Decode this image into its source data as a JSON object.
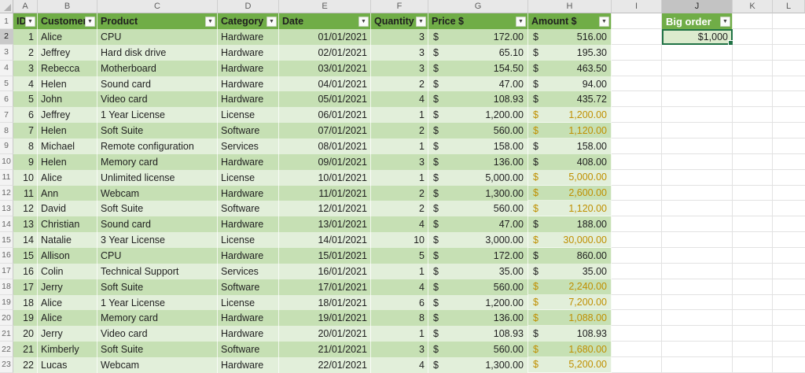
{
  "sheet": {
    "column_letters": [
      "A",
      "B",
      "C",
      "D",
      "E",
      "F",
      "G",
      "H",
      "I",
      "J",
      "K",
      "L"
    ],
    "first_row_number": 1,
    "last_row_number": 23
  },
  "selection": {
    "column": "J",
    "row": 2
  },
  "table": {
    "headers": [
      "ID",
      "Customer",
      "Product",
      "Category",
      "Date",
      "Quantity",
      "Price $",
      "Amount $"
    ],
    "rows": [
      {
        "id": "1",
        "customer": "Alice",
        "product": "CPU",
        "category": "Hardware",
        "date": "01/01/2021",
        "quantity": "3",
        "price": "172.00",
        "amount": "516.00",
        "big_order": false
      },
      {
        "id": "2",
        "customer": "Jeffrey",
        "product": "Hard disk drive",
        "category": "Hardware",
        "date": "02/01/2021",
        "quantity": "3",
        "price": "65.10",
        "amount": "195.30",
        "big_order": false
      },
      {
        "id": "3",
        "customer": "Rebecca",
        "product": "Motherboard",
        "category": "Hardware",
        "date": "03/01/2021",
        "quantity": "3",
        "price": "154.50",
        "amount": "463.50",
        "big_order": false
      },
      {
        "id": "4",
        "customer": "Helen",
        "product": "Sound card",
        "category": "Hardware",
        "date": "04/01/2021",
        "quantity": "2",
        "price": "47.00",
        "amount": "94.00",
        "big_order": false
      },
      {
        "id": "5",
        "customer": "John",
        "product": "Video card",
        "category": "Hardware",
        "date": "05/01/2021",
        "quantity": "4",
        "price": "108.93",
        "amount": "435.72",
        "big_order": false
      },
      {
        "id": "6",
        "customer": "Jeffrey",
        "product": "1 Year License",
        "category": "License",
        "date": "06/01/2021",
        "quantity": "1",
        "price": "1,200.00",
        "amount": "1,200.00",
        "big_order": true
      },
      {
        "id": "7",
        "customer": "Helen",
        "product": "Soft Suite",
        "category": "Software",
        "date": "07/01/2021",
        "quantity": "2",
        "price": "560.00",
        "amount": "1,120.00",
        "big_order": true
      },
      {
        "id": "8",
        "customer": "Michael",
        "product": "Remote configuration",
        "category": "Services",
        "date": "08/01/2021",
        "quantity": "1",
        "price": "158.00",
        "amount": "158.00",
        "big_order": false
      },
      {
        "id": "9",
        "customer": "Helen",
        "product": "Memory card",
        "category": "Hardware",
        "date": "09/01/2021",
        "quantity": "3",
        "price": "136.00",
        "amount": "408.00",
        "big_order": false
      },
      {
        "id": "10",
        "customer": "Alice",
        "product": "Unlimited license",
        "category": "License",
        "date": "10/01/2021",
        "quantity": "1",
        "price": "5,000.00",
        "amount": "5,000.00",
        "big_order": true
      },
      {
        "id": "11",
        "customer": "Ann",
        "product": "Webcam",
        "category": "Hardware",
        "date": "11/01/2021",
        "quantity": "2",
        "price": "1,300.00",
        "amount": "2,600.00",
        "big_order": true
      },
      {
        "id": "12",
        "customer": "David",
        "product": "Soft Suite",
        "category": "Software",
        "date": "12/01/2021",
        "quantity": "2",
        "price": "560.00",
        "amount": "1,120.00",
        "big_order": true
      },
      {
        "id": "13",
        "customer": "Christian",
        "product": "Sound card",
        "category": "Hardware",
        "date": "13/01/2021",
        "quantity": "4",
        "price": "47.00",
        "amount": "188.00",
        "big_order": false
      },
      {
        "id": "14",
        "customer": "Natalie",
        "product": "3 Year License",
        "category": "License",
        "date": "14/01/2021",
        "quantity": "10",
        "price": "3,000.00",
        "amount": "30,000.00",
        "big_order": true
      },
      {
        "id": "15",
        "customer": "Allison",
        "product": "CPU",
        "category": "Hardware",
        "date": "15/01/2021",
        "quantity": "5",
        "price": "172.00",
        "amount": "860.00",
        "big_order": false
      },
      {
        "id": "16",
        "customer": "Colin",
        "product": "Technical Support",
        "category": "Services",
        "date": "16/01/2021",
        "quantity": "1",
        "price": "35.00",
        "amount": "35.00",
        "big_order": false
      },
      {
        "id": "17",
        "customer": "Jerry",
        "product": "Soft Suite",
        "category": "Software",
        "date": "17/01/2021",
        "quantity": "4",
        "price": "560.00",
        "amount": "2,240.00",
        "big_order": true
      },
      {
        "id": "18",
        "customer": "Alice",
        "product": "1 Year License",
        "category": "License",
        "date": "18/01/2021",
        "quantity": "6",
        "price": "1,200.00",
        "amount": "7,200.00",
        "big_order": true
      },
      {
        "id": "19",
        "customer": "Alice",
        "product": "Memory card",
        "category": "Hardware",
        "date": "19/01/2021",
        "quantity": "8",
        "price": "136.00",
        "amount": "1,088.00",
        "big_order": true
      },
      {
        "id": "20",
        "customer": "Jerry",
        "product": "Video card",
        "category": "Hardware",
        "date": "20/01/2021",
        "quantity": "1",
        "price": "108.93",
        "amount": "108.93",
        "big_order": false
      },
      {
        "id": "21",
        "customer": "Kimberly",
        "product": "Soft Suite",
        "category": "Software",
        "date": "21/01/2021",
        "quantity": "3",
        "price": "560.00",
        "amount": "1,680.00",
        "big_order": true
      },
      {
        "id": "22",
        "customer": "Lucas",
        "product": "Webcam",
        "category": "Hardware",
        "date": "22/01/2021",
        "quantity": "4",
        "price": "1,300.00",
        "amount": "5,200.00",
        "big_order": true
      }
    ],
    "currency_symbol": "$"
  },
  "big_order": {
    "header": "Big order",
    "value": "$1,000"
  },
  "colors": {
    "header_green": "#70AD47",
    "band_dark": "#C6E0B4",
    "band_light": "#E2EFDA",
    "highlight_fill": "#FFE38F",
    "highlight_text": "#BF8F00",
    "selection_green": "#217346",
    "bar_bg": "#E8E8E8"
  }
}
